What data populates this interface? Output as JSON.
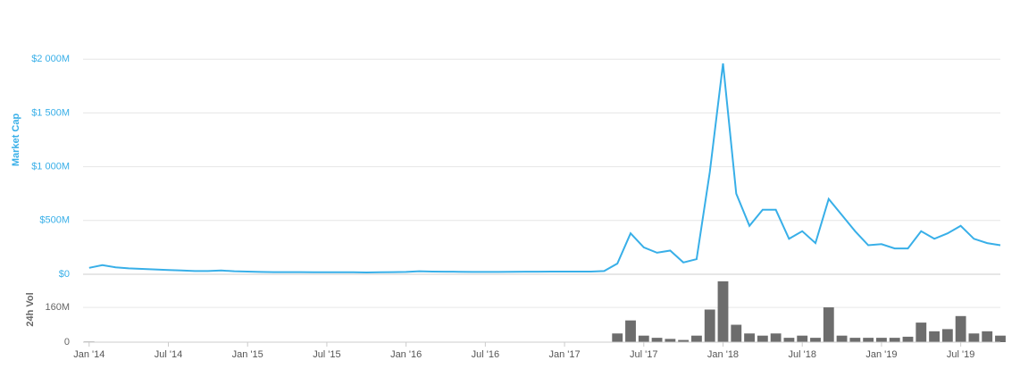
{
  "chart_data": [
    {
      "type": "line",
      "y_label": "Market Cap",
      "color": "#38afe8",
      "label_color": "#38afe8",
      "grid": true,
      "x": [
        "2014-01",
        "2014-02",
        "2014-03",
        "2014-04",
        "2014-05",
        "2014-06",
        "2014-07",
        "2014-08",
        "2014-09",
        "2014-10",
        "2014-11",
        "2014-12",
        "2015-01",
        "2015-02",
        "2015-03",
        "2015-04",
        "2015-05",
        "2015-06",
        "2015-07",
        "2015-08",
        "2015-09",
        "2015-10",
        "2015-11",
        "2015-12",
        "2016-01",
        "2016-02",
        "2016-03",
        "2016-04",
        "2016-05",
        "2016-06",
        "2016-07",
        "2016-08",
        "2016-09",
        "2016-10",
        "2016-11",
        "2016-12",
        "2017-01",
        "2017-02",
        "2017-03",
        "2017-04",
        "2017-05",
        "2017-06",
        "2017-07",
        "2017-08",
        "2017-09",
        "2017-10",
        "2017-11",
        "2017-12",
        "2018-01",
        "2018-02",
        "2018-03",
        "2018-04",
        "2018-05",
        "2018-06",
        "2018-07",
        "2018-08",
        "2018-09",
        "2018-10",
        "2018-11",
        "2018-12",
        "2019-01",
        "2019-02",
        "2019-03",
        "2019-04",
        "2019-05",
        "2019-06",
        "2019-07",
        "2019-08",
        "2019-09",
        "2019-10"
      ],
      "values": [
        60,
        85,
        65,
        55,
        50,
        45,
        40,
        35,
        30,
        30,
        35,
        28,
        25,
        22,
        20,
        20,
        20,
        18,
        18,
        18,
        18,
        17,
        18,
        20,
        22,
        28,
        25,
        24,
        23,
        22,
        22,
        22,
        23,
        24,
        24,
        25,
        25,
        25,
        25,
        30,
        100,
        380,
        250,
        200,
        220,
        110,
        140,
        950,
        1960,
        750,
        450,
        600,
        600,
        330,
        400,
        290,
        700,
        550,
        400,
        270,
        280,
        240,
        240,
        400,
        330,
        380,
        450,
        330,
        290,
        270
      ],
      "xlim": [
        "2013-12",
        "2019-10"
      ],
      "ylim": [
        0,
        2500
      ],
      "yticks": [
        {
          "value": 0,
          "label": "$0"
        },
        {
          "value": 500,
          "label": "$500M"
        },
        {
          "value": 1000,
          "label": "$1 000M"
        },
        {
          "value": 1500,
          "label": "$1 500M"
        },
        {
          "value": 2000,
          "label": "$2 000M"
        }
      ]
    },
    {
      "type": "bar",
      "y_label": "24h Vol",
      "color": "#6d6d6d",
      "label_color": "#666666",
      "grid": true,
      "x": [
        "2014-01",
        "2014-02",
        "2014-03",
        "2014-04",
        "2014-05",
        "2014-06",
        "2014-07",
        "2014-08",
        "2014-09",
        "2014-10",
        "2014-11",
        "2014-12",
        "2015-01",
        "2015-02",
        "2015-03",
        "2015-04",
        "2015-05",
        "2015-06",
        "2015-07",
        "2015-08",
        "2015-09",
        "2015-10",
        "2015-11",
        "2015-12",
        "2016-01",
        "2016-02",
        "2016-03",
        "2016-04",
        "2016-05",
        "2016-06",
        "2016-07",
        "2016-08",
        "2016-09",
        "2016-10",
        "2016-11",
        "2016-12",
        "2017-01",
        "2017-02",
        "2017-03",
        "2017-04",
        "2017-05",
        "2017-06",
        "2017-07",
        "2017-08",
        "2017-09",
        "2017-10",
        "2017-11",
        "2017-12",
        "2018-01",
        "2018-02",
        "2018-03",
        "2018-04",
        "2018-05",
        "2018-06",
        "2018-07",
        "2018-08",
        "2018-09",
        "2018-10",
        "2018-11",
        "2018-12",
        "2019-01",
        "2019-02",
        "2019-03",
        "2019-04",
        "2019-05",
        "2019-06",
        "2019-07",
        "2019-08",
        "2019-09",
        "2019-10"
      ],
      "values": [
        3,
        2,
        2,
        1,
        1,
        1,
        1,
        1,
        1,
        1,
        2,
        1,
        1,
        1,
        1,
        1,
        1,
        1,
        1,
        1,
        1,
        1,
        1,
        1,
        2,
        2,
        1,
        1,
        1,
        1,
        1,
        1,
        1,
        1,
        1,
        1,
        1,
        1,
        1,
        2,
        40,
        100,
        30,
        20,
        15,
        10,
        30,
        150,
        280,
        80,
        40,
        30,
        40,
        20,
        30,
        20,
        160,
        30,
        20,
        20,
        20,
        20,
        25,
        90,
        50,
        60,
        120,
        40,
        50,
        30
      ],
      "xlim": [
        "2013-12",
        "2019-10"
      ],
      "ylim": [
        0,
        300
      ],
      "yticks": [
        0,
        {
          "value": 160,
          "label": "160M"
        }
      ],
      "xticks": [
        {
          "value": "2014-01",
          "label": "Jan '14"
        },
        {
          "value": "2014-07",
          "label": "Jul '14"
        },
        {
          "value": "2015-01",
          "label": "Jan '15"
        },
        {
          "value": "2015-07",
          "label": "Jul '15"
        },
        {
          "value": "2016-01",
          "label": "Jan '16"
        },
        {
          "value": "2016-07",
          "label": "Jul '16"
        },
        {
          "value": "2017-01",
          "label": "Jan '17"
        },
        {
          "value": "2017-07",
          "label": "Jul '17"
        },
        {
          "value": "2018-01",
          "label": "Jan '18"
        },
        {
          "value": "2018-07",
          "label": "Jul '18"
        },
        {
          "value": "2019-01",
          "label": "Jan '19"
        },
        {
          "value": "2019-07",
          "label": "Jul '19"
        }
      ]
    }
  ]
}
